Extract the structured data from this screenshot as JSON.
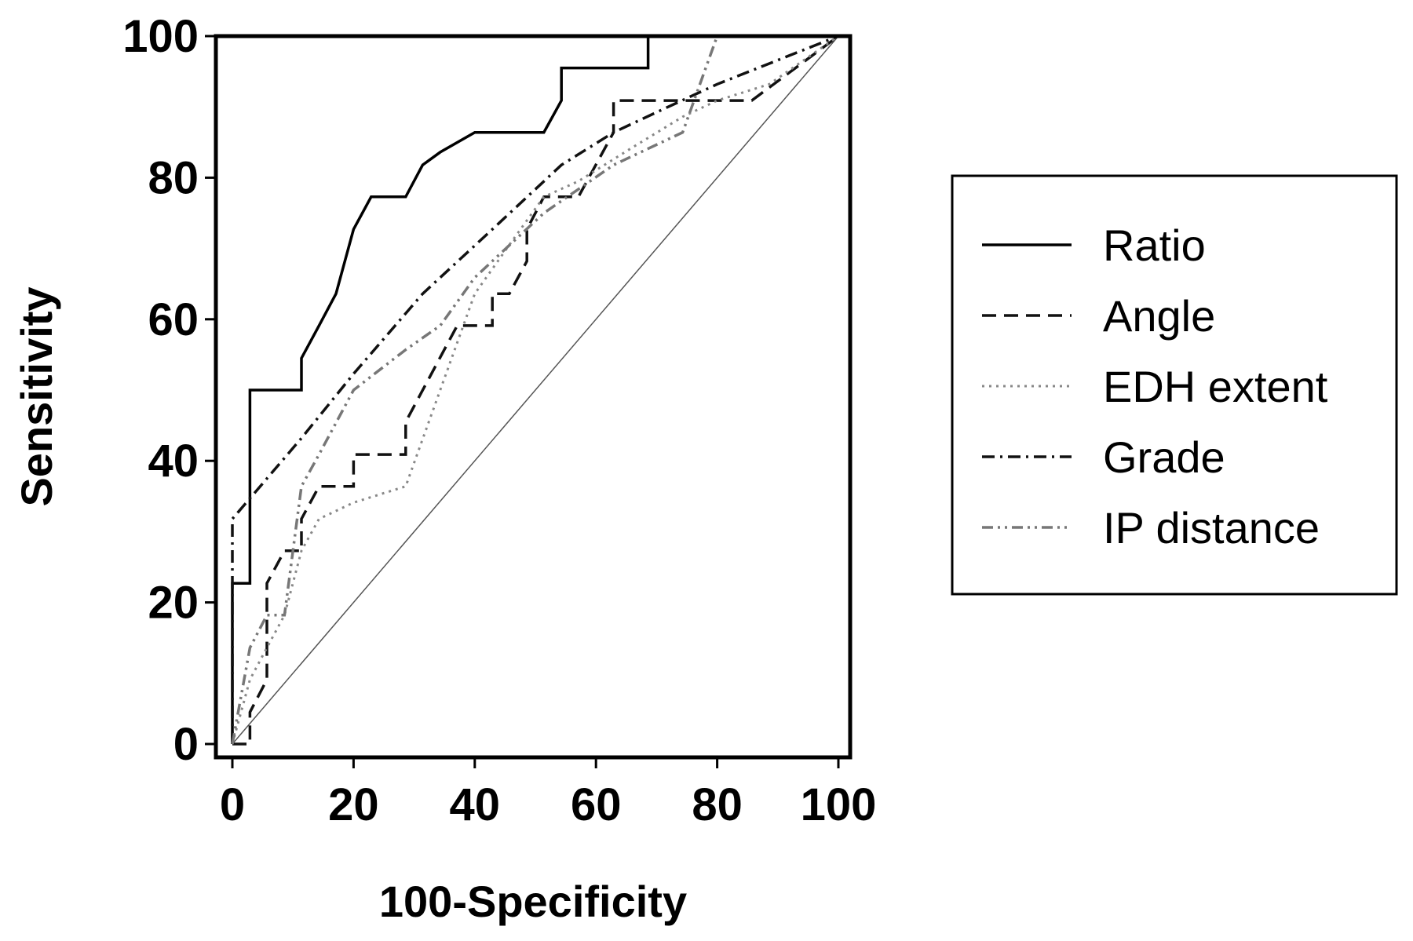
{
  "chart_data": {
    "type": "line",
    "title": "",
    "xlabel": "100-Specificity",
    "ylabel": "Sensitivity",
    "xlim": [
      0,
      100
    ],
    "ylim": [
      0,
      100
    ],
    "xticks": [
      0,
      20,
      40,
      60,
      80,
      100
    ],
    "yticks": [
      0,
      20,
      40,
      60,
      80,
      100
    ],
    "grid": false,
    "legend_position": "right",
    "reference_line": {
      "x": [
        0,
        100
      ],
      "y": [
        0,
        100
      ]
    },
    "series": [
      {
        "name": "Ratio",
        "style": "solid",
        "color": "#000000",
        "x": [
          0,
          0,
          2.9,
          2.9,
          11.4,
          11.4,
          14.3,
          17.1,
          20,
          22.9,
          28.6,
          28.6,
          31.4,
          34.3,
          40,
          40,
          51.4,
          54.3,
          54.3,
          68.6,
          68.6,
          80,
          100
        ],
        "y": [
          0,
          22.7,
          22.7,
          50,
          50,
          54.5,
          59.1,
          63.6,
          72.7,
          77.3,
          77.3,
          77.3,
          81.8,
          83.6,
          86.4,
          86.4,
          86.4,
          90.9,
          95.5,
          95.5,
          100,
          100,
          100
        ]
      },
      {
        "name": "Angle",
        "style": "dashed",
        "color": "#111111",
        "x": [
          0,
          2.9,
          2.9,
          5.7,
          5.7,
          8.6,
          11.4,
          11.4,
          14.3,
          20,
          20,
          28.6,
          28.6,
          37.1,
          42.9,
          42.9,
          45.7,
          48.6,
          48.6,
          51.4,
          57.1,
          62.9,
          62.9,
          85.7,
          100
        ],
        "y": [
          0,
          0,
          4.5,
          9.1,
          22.7,
          27.3,
          27.3,
          31.8,
          36.4,
          36.4,
          40.9,
          40.9,
          45.5,
          59.1,
          59.1,
          63.6,
          63.6,
          68.2,
          72.7,
          77.3,
          77.3,
          86.4,
          90.9,
          90.9,
          100
        ]
      },
      {
        "name": "EDH extent",
        "style": "dotted",
        "color": "#888888",
        "x": [
          0,
          2.9,
          5.7,
          8.6,
          11.4,
          14.3,
          20,
          28.6,
          34.3,
          40,
          45.7,
          51.4,
          57.1,
          65.7,
          74.3,
          80,
          88.6,
          100
        ],
        "y": [
          0,
          9.1,
          13.6,
          18.2,
          27.3,
          31.8,
          34.1,
          36.4,
          50,
          63.6,
          70.5,
          77.3,
          79.5,
          84.1,
          88.6,
          90.9,
          93.2,
          100
        ]
      },
      {
        "name": "Grade",
        "style": "dashdot",
        "color": "#111111",
        "x": [
          0,
          0,
          11.4,
          20,
          31.4,
          42.9,
          54.3,
          62.9,
          71.4,
          80,
          100
        ],
        "y": [
          0,
          31.8,
          43.2,
          52.3,
          63.6,
          72.7,
          81.8,
          86.4,
          89.8,
          93.2,
          100
        ]
      },
      {
        "name": "IP distance",
        "style": "dashdotdot",
        "color": "#777777",
        "x": [
          0,
          2.9,
          5.7,
          8.6,
          11.4,
          14.3,
          20,
          28.6,
          34.3,
          40,
          51.4,
          62.9,
          74.3,
          80,
          100
        ],
        "y": [
          0,
          13.6,
          18.2,
          18.2,
          36.4,
          40.9,
          50,
          55.7,
          59.1,
          65.9,
          75,
          81.8,
          86.4,
          100,
          100
        ]
      }
    ]
  }
}
